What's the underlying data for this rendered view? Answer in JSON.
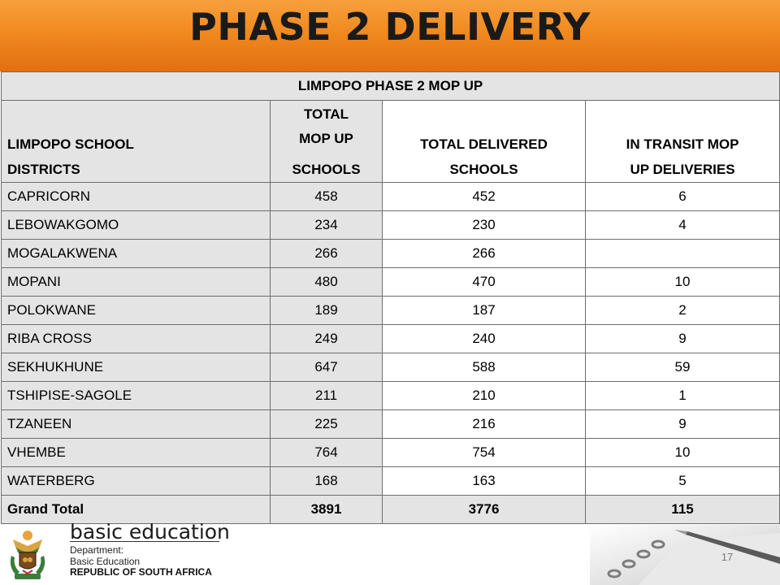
{
  "slide": {
    "title": "PHASE 2 DELIVERY",
    "page_number": "17"
  },
  "table": {
    "title": "LIMPOPO PHASE 2 MOP UP",
    "headers": {
      "col0": [
        "LIMPOPO SCHOOL",
        "DISTRICTS"
      ],
      "col1": [
        "TOTAL",
        "MOP UP",
        "SCHOOLS"
      ],
      "col2": [
        "TOTAL DELIVERED",
        "SCHOOLS"
      ],
      "col3": [
        "IN TRANSIT MOP",
        "UP DELIVERIES"
      ]
    },
    "rows": [
      {
        "district": "CAPRICORN",
        "total": "458",
        "delivered": "452",
        "transit": "6"
      },
      {
        "district": "LEBOWAKGOMO",
        "total": "234",
        "delivered": "230",
        "transit": "4"
      },
      {
        "district": "MOGALAKWENA",
        "total": "266",
        "delivered": "266",
        "transit": ""
      },
      {
        "district": "MOPANI",
        "total": "480",
        "delivered": "470",
        "transit": "10"
      },
      {
        "district": "POLOKWANE",
        "total": "189",
        "delivered": "187",
        "transit": "2"
      },
      {
        "district": "RIBA CROSS",
        "total": "249",
        "delivered": "240",
        "transit": "9"
      },
      {
        "district": "SEKHUKHUNE",
        "total": "647",
        "delivered": "588",
        "transit": "59"
      },
      {
        "district": "TSHIPISE-SAGOLE",
        "total": "211",
        "delivered": "210",
        "transit": "1"
      },
      {
        "district": "TZANEEN",
        "total": "225",
        "delivered": "216",
        "transit": "9"
      },
      {
        "district": "VHEMBE",
        "total": "764",
        "delivered": "754",
        "transit": "10"
      },
      {
        "district": "WATERBERG",
        "total": "168",
        "delivered": "163",
        "transit": "5"
      }
    ],
    "grand_total": {
      "label": "Grand Total",
      "total": "3891",
      "delivered": "3776",
      "transit": "115"
    }
  },
  "footer": {
    "department_heading": "basic education",
    "line1": "Department:",
    "line2": "Basic Education",
    "line3": "REPUBLIC OF SOUTH AFRICA"
  },
  "colors": {
    "title_band": "#f08a1f",
    "header_shade": "#e4e4e4",
    "grid_lines": "#6e6e6e"
  }
}
